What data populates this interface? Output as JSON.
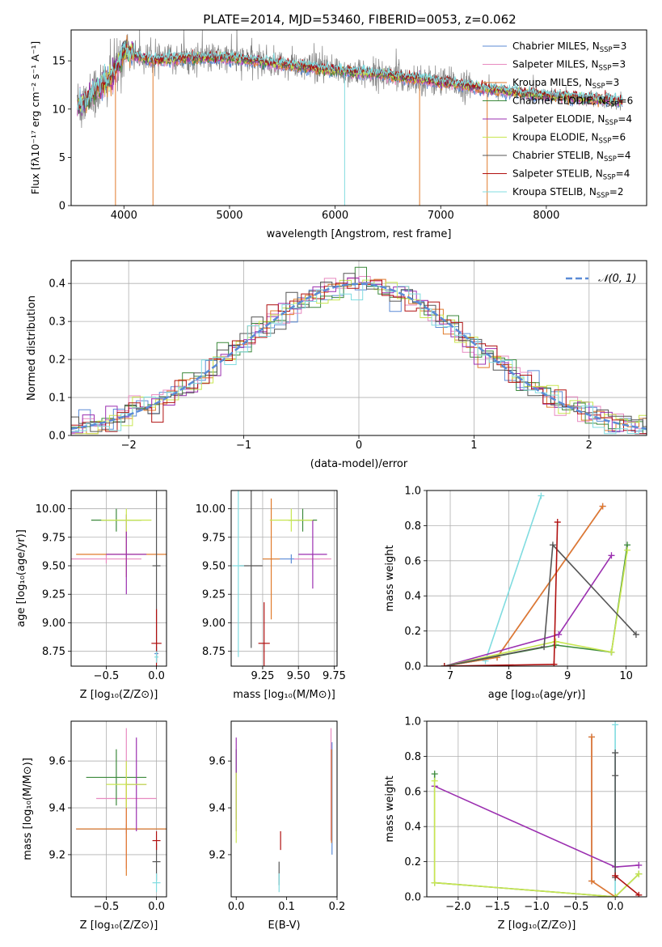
{
  "figure_title": "PLATE=2014, MJD=53460, FIBERID=0053, z=0.062",
  "colors": {
    "chabrier_miles": "#5b8bd6",
    "salpeter_miles": "#e88ac0",
    "kroupa_miles": "#e07b2c",
    "chabrier_elodie": "#3c8a3c",
    "salpeter_elodie": "#9b2fb0",
    "kroupa_elodie": "#c8e650",
    "chabrier_stelib": "#555555",
    "salpeter_stelib": "#b01010",
    "kroupa_stelib": "#80dce0",
    "gauss": "#5b8bd6",
    "grid": "#b0b0b0"
  },
  "chart_data": [
    {
      "id": "spectrum",
      "type": "line",
      "xlabel": "wavelength [Angstrom, rest frame]",
      "ylabel": "Flux [fλ10⁻¹⁷ erg cm⁻² s⁻¹ A⁻¹]",
      "xlim": [
        3500,
        8950
      ],
      "ylim": [
        0,
        18.2
      ],
      "xticks": [
        4000,
        5000,
        6000,
        7000,
        8000
      ],
      "yticks": [
        0,
        5,
        10,
        15
      ],
      "grid": false,
      "legend_position": "top-right",
      "legend": [
        {
          "key": "chabrier_miles",
          "label": "Chabrier MILES, N",
          "sub": "SSP",
          "tail": "=3"
        },
        {
          "key": "salpeter_miles",
          "label": "Salpeter MILES, N",
          "sub": "SSP",
          "tail": "=3"
        },
        {
          "key": "kroupa_miles",
          "label": "Kroupa MILES, N",
          "sub": "SSP",
          "tail": "=3"
        },
        {
          "key": "chabrier_elodie",
          "label": "Chabrier ELODIE, N",
          "sub": "SSP",
          "tail": "=6"
        },
        {
          "key": "salpeter_elodie",
          "label": "Salpeter ELODIE, N",
          "sub": "SSP",
          "tail": "=4"
        },
        {
          "key": "kroupa_elodie",
          "label": "Kroupa ELODIE, N",
          "sub": "SSP",
          "tail": "=6"
        },
        {
          "key": "chabrier_stelib",
          "label": "Chabrier STELIB, N",
          "sub": "SSP",
          "tail": "=4"
        },
        {
          "key": "salpeter_stelib",
          "label": "Salpeter STELIB, N",
          "sub": "SSP",
          "tail": "=4"
        },
        {
          "key": "kroupa_stelib",
          "label": "Kroupa STELIB, N",
          "sub": "SSP",
          "tail": "=2"
        }
      ],
      "continuum": [
        [
          3600,
          10.5
        ],
        [
          3700,
          11.5
        ],
        [
          3800,
          12.5
        ],
        [
          3900,
          13.5
        ],
        [
          4000,
          16.0
        ],
        [
          4100,
          15.5
        ],
        [
          4300,
          15.0
        ],
        [
          4600,
          15.3
        ],
        [
          5000,
          15.3
        ],
        [
          5500,
          14.6
        ],
        [
          6000,
          14.0
        ],
        [
          6500,
          13.5
        ],
        [
          7000,
          12.8
        ],
        [
          7500,
          12.0
        ],
        [
          8000,
          11.4
        ],
        [
          8500,
          11.0
        ],
        [
          8700,
          10.8
        ]
      ],
      "data_range": [
        3560,
        8720
      ],
      "model_range": [
        3560,
        8720
      ],
      "drops": [
        {
          "x": 3920,
          "key": "kroupa_miles"
        },
        {
          "x": 4275,
          "key": "kroupa_miles"
        },
        {
          "x": 6090,
          "key": "kroupa_stelib"
        },
        {
          "x": 6800,
          "key": "kroupa_miles"
        },
        {
          "x": 7440,
          "key": "kroupa_miles"
        }
      ]
    },
    {
      "id": "residuals",
      "type": "histogram",
      "xlabel": "(data-model)/error",
      "ylabel": "Normed distribution",
      "xlim": [
        -2.5,
        2.5
      ],
      "ylim": [
        0,
        0.46
      ],
      "xticks": [
        -2,
        -1,
        0,
        1,
        2
      ],
      "yticks": [
        0.0,
        0.1,
        0.2,
        0.3,
        0.4
      ],
      "grid": true,
      "legend_position": "top-right",
      "gauss_label": "𝒩(0, 1)",
      "bin_width": 0.1
    },
    {
      "id": "age_vs_Z",
      "type": "errorbar",
      "xlabel": "Z [log₁₀(Z/Z⊙)]",
      "ylabel": "age  [log₁₀(age/yr)]",
      "xlim": [
        -0.85,
        0.1
      ],
      "ylim": [
        8.62,
        10.16
      ],
      "xticks": [
        -0.5,
        0.0
      ],
      "yticks": [
        8.75,
        9.0,
        9.25,
        9.5,
        9.75,
        10.0
      ],
      "grid": true,
      "points": [
        {
          "key": "chabrier_miles",
          "x": 0.0,
          "y": 8.73,
          "xerr": 0.02,
          "yerr": 0.06
        },
        {
          "key": "salpeter_miles",
          "x": -0.5,
          "y": 9.56,
          "xerr": 0.35,
          "yerr": 0.04
        },
        {
          "key": "kroupa_miles",
          "x": -0.3,
          "y": 9.6,
          "xerr": 0.5,
          "yerr": 0.2
        },
        {
          "key": "chabrier_elodie",
          "x": -0.4,
          "y": 9.9,
          "xerr": 0.25,
          "yerr": 0.1
        },
        {
          "key": "salpeter_elodie",
          "x": -0.3,
          "y": 9.6,
          "xerr": 0.2,
          "yerr": 0.35
        },
        {
          "key": "kroupa_elodie",
          "x": -0.3,
          "y": 9.9,
          "xerr": 0.25,
          "yerr": 0.1
        },
        {
          "key": "chabrier_stelib",
          "x": 0.0,
          "y": 9.5,
          "xerr": 0.04,
          "yerr": 0.75
        },
        {
          "key": "salpeter_stelib",
          "x": 0.0,
          "y": 8.82,
          "xerr": 0.05,
          "yerr": 0.3
        },
        {
          "key": "kroupa_stelib",
          "x": 0.0,
          "y": 8.7,
          "xerr": 0.02,
          "yerr": 0.05
        }
      ]
    },
    {
      "id": "age_vs_mass",
      "type": "errorbar",
      "xlabel": "mass [log₁₀(M/M⊙)]",
      "ylabel": "",
      "xlim": [
        9.03,
        9.77
      ],
      "ylim": [
        8.62,
        10.16
      ],
      "xticks": [
        9.25,
        9.5,
        9.75
      ],
      "yticks": [
        8.75,
        9.0,
        9.25,
        9.5,
        9.75,
        10.0
      ],
      "grid": true,
      "points": [
        {
          "key": "chabrier_miles",
          "x": 9.45,
          "y": 9.56,
          "xerr": 0.2,
          "yerr": 0.04
        },
        {
          "key": "salpeter_miles",
          "x": 9.6,
          "y": 9.56,
          "xerr": 0.13,
          "yerr": 0.04
        },
        {
          "key": "kroupa_miles",
          "x": 9.31,
          "y": 9.56,
          "xerr": 0.06,
          "yerr": 0.53
        },
        {
          "key": "chabrier_elodie",
          "x": 9.53,
          "y": 9.9,
          "xerr": 0.1,
          "yerr": 0.1
        },
        {
          "key": "salpeter_elodie",
          "x": 9.6,
          "y": 9.6,
          "xerr": 0.1,
          "yerr": 0.3
        },
        {
          "key": "kroupa_elodie",
          "x": 9.45,
          "y": 9.9,
          "xerr": 0.15,
          "yerr": 0.1
        },
        {
          "key": "chabrier_stelib",
          "x": 9.17,
          "y": 9.5,
          "xerr": 0.08,
          "yerr": 0.72
        },
        {
          "key": "salpeter_stelib",
          "x": 9.26,
          "y": 8.82,
          "xerr": 0.04,
          "yerr": 0.36
        },
        {
          "key": "kroupa_stelib",
          "x": 9.08,
          "y": 9.5,
          "xerr": 0.04,
          "yerr": 0.8
        }
      ]
    },
    {
      "id": "weight_vs_age",
      "type": "line",
      "xlabel": "age  [log₁₀(age/yr)]",
      "ylabel": "mass weight",
      "xlim": [
        6.6,
        10.35
      ],
      "ylim": [
        0,
        1.0
      ],
      "xticks": [
        7,
        8,
        9,
        10
      ],
      "yticks": [
        0.0,
        0.2,
        0.4,
        0.6,
        0.8,
        1.0
      ],
      "grid": true,
      "series": [
        {
          "key": "kroupa_stelib",
          "x": [
            7.6,
            8.55
          ],
          "y": [
            0.03,
            0.97
          ]
        },
        {
          "key": "chabrier_miles",
          "x": [
            6.9,
            7.8,
            9.6
          ],
          "y": [
            0.0,
            0.05,
            0.91
          ]
        },
        {
          "key": "salpeter_miles",
          "x": [
            6.9,
            7.8,
            9.6
          ],
          "y": [
            0.0,
            0.05,
            0.91
          ]
        },
        {
          "key": "kroupa_miles",
          "x": [
            6.9,
            7.8,
            9.6
          ],
          "y": [
            0.0,
            0.05,
            0.91
          ]
        },
        {
          "key": "chabrier_elodie",
          "x": [
            6.9,
            8.8,
            9.75,
            10.02,
            9.75
          ],
          "y": [
            0.0,
            0.12,
            0.08,
            0.69,
            0.08
          ]
        },
        {
          "key": "salpeter_elodie",
          "x": [
            6.9,
            8.85,
            9.75
          ],
          "y": [
            0.0,
            0.18,
            0.63
          ]
        },
        {
          "key": "kroupa_elodie",
          "x": [
            6.9,
            8.8,
            9.75,
            10.02
          ],
          "y": [
            0.0,
            0.14,
            0.08,
            0.66
          ]
        },
        {
          "key": "chabrier_stelib",
          "x": [
            6.9,
            8.6,
            8.75,
            10.17
          ],
          "y": [
            0.0,
            0.11,
            0.69,
            0.18
          ]
        },
        {
          "key": "salpeter_stelib",
          "x": [
            6.9,
            8.77,
            8.83,
            8.77
          ],
          "y": [
            0.0,
            0.01,
            0.82,
            0.01
          ]
        }
      ]
    },
    {
      "id": "mass_vs_Z",
      "type": "errorbar",
      "xlabel": "Z [log₁₀(Z/Z⊙)]",
      "ylabel": "mass [log₁₀(M/M⊙)]",
      "xlim": [
        -0.85,
        0.1
      ],
      "ylim": [
        9.02,
        9.77
      ],
      "xticks": [
        -0.5,
        0.0
      ],
      "yticks": [
        9.2,
        9.4,
        9.6
      ],
      "grid": true,
      "points": [
        {
          "key": "chabrier_miles",
          "x": -0.3,
          "y": 9.31,
          "xerr": 0.5,
          "yerr": 0.02
        },
        {
          "key": "salpeter_miles",
          "x": -0.3,
          "y": 9.44,
          "xerr": 0.3,
          "yerr": 0.3
        },
        {
          "key": "kroupa_miles",
          "x": -0.3,
          "y": 9.31,
          "xerr": 0.5,
          "yerr": 0.2
        },
        {
          "key": "chabrier_elodie",
          "x": -0.4,
          "y": 9.53,
          "xerr": 0.3,
          "yerr": 0.12
        },
        {
          "key": "salpeter_elodie",
          "x": -0.2,
          "y": 9.5,
          "xerr": 0.1,
          "yerr": 0.2
        },
        {
          "key": "kroupa_elodie",
          "x": -0.3,
          "y": 9.5,
          "xerr": 0.2,
          "yerr": 0.1
        },
        {
          "key": "chabrier_stelib",
          "x": 0.0,
          "y": 9.17,
          "xerr": 0.04,
          "yerr": 0.08
        },
        {
          "key": "salpeter_stelib",
          "x": 0.0,
          "y": 9.26,
          "xerr": 0.04,
          "yerr": 0.04
        },
        {
          "key": "kroupa_stelib",
          "x": 0.0,
          "y": 9.08,
          "xerr": 0.04,
          "yerr": 0.04
        }
      ]
    },
    {
      "id": "mass_vs_ebv",
      "type": "errorbar",
      "xlabel": "E(B-V)",
      "ylabel": "",
      "xlim": [
        -0.01,
        0.2
      ],
      "ylim": [
        9.02,
        9.77
      ],
      "xticks": [
        0.0,
        0.1,
        0.2
      ],
      "yticks": [
        9.2,
        9.4,
        9.6
      ],
      "grid": false,
      "points": [
        {
          "key": "chabrier_miles",
          "x": 0.19,
          "y": 9.44,
          "xerr": 0.0,
          "yerr": 0.24
        },
        {
          "key": "salpeter_miles",
          "x": 0.188,
          "y": 9.5,
          "xerr": 0.0,
          "yerr": 0.24
        },
        {
          "key": "kroupa_miles",
          "x": 0.189,
          "y": 9.45,
          "xerr": 0.0,
          "yerr": 0.2
        },
        {
          "key": "chabrier_elodie",
          "x": 0.0,
          "y": 9.5,
          "xerr": 0.0,
          "yerr": 0.15
        },
        {
          "key": "salpeter_elodie",
          "x": 0.0,
          "y": 9.5,
          "xerr": 0.0,
          "yerr": 0.2
        },
        {
          "key": "kroupa_elodie",
          "x": 0.0,
          "y": 9.4,
          "xerr": 0.0,
          "yerr": 0.15
        },
        {
          "key": "chabrier_stelib",
          "x": 0.085,
          "y": 9.12,
          "xerr": 0.0,
          "yerr": 0.05
        },
        {
          "key": "salpeter_stelib",
          "x": 0.088,
          "y": 9.26,
          "xerr": 0.0,
          "yerr": 0.04
        },
        {
          "key": "kroupa_stelib",
          "x": 0.085,
          "y": 9.08,
          "xerr": 0.0,
          "yerr": 0.04
        }
      ]
    },
    {
      "id": "weight_vs_Z",
      "type": "line",
      "xlabel": "Z [log₁₀(Z/Z⊙)]",
      "ylabel": "mass weight",
      "xlim": [
        -2.4,
        0.4
      ],
      "ylim": [
        0,
        1.0
      ],
      "xticks": [
        -2.0,
        -1.5,
        -1.0,
        -0.5,
        0.0
      ],
      "yticks": [
        0.0,
        0.2,
        0.4,
        0.6,
        0.8,
        1.0
      ],
      "grid": true,
      "series": [
        {
          "key": "kroupa_stelib",
          "x": [
            0.0,
            0.0
          ],
          "y": [
            0.0,
            0.98
          ]
        },
        {
          "key": "chabrier_miles",
          "x": [
            -0.3,
            -0.3,
            0.0
          ],
          "y": [
            0.91,
            0.09,
            0.0
          ]
        },
        {
          "key": "salpeter_miles",
          "x": [
            -0.3,
            -0.3,
            0.0
          ],
          "y": [
            0.91,
            0.09,
            0.0
          ]
        },
        {
          "key": "kroupa_miles",
          "x": [
            -0.3,
            -0.3,
            0.0
          ],
          "y": [
            0.91,
            0.09,
            0.0
          ]
        },
        {
          "key": "chabrier_elodie",
          "x": [
            -2.3,
            -2.3,
            0.0,
            0.3
          ],
          "y": [
            0.7,
            0.08,
            0.0,
            0.13
          ]
        },
        {
          "key": "salpeter_elodie",
          "x": [
            -2.3,
            0.0,
            0.3
          ],
          "y": [
            0.63,
            0.17,
            0.18
          ]
        },
        {
          "key": "kroupa_elodie",
          "x": [
            -2.3,
            -2.3,
            0.0,
            0.3
          ],
          "y": [
            0.66,
            0.08,
            0.0,
            0.13
          ]
        },
        {
          "key": "chabrier_stelib",
          "x": [
            0.0,
            0.0,
            0.0
          ],
          "y": [
            0.82,
            0.69,
            0.11
          ]
        },
        {
          "key": "salpeter_stelib",
          "x": [
            0.0,
            0.3
          ],
          "y": [
            0.12,
            0.01
          ]
        }
      ]
    }
  ]
}
